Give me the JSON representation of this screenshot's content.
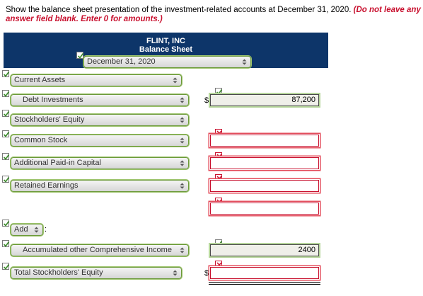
{
  "instruction": {
    "text": "Show the balance sheet presentation of the investment-related accounts at December 31, 2020.",
    "warning": "(Do not leave any answer field blank. Enter 0 for amounts.)"
  },
  "header": {
    "company": "FLINT, INC",
    "title": "Balance Sheet",
    "date_select": "December 31, 2020"
  },
  "rows": [
    {
      "label": "Current Assets",
      "value": "",
      "status": "correct"
    },
    {
      "label": "Debt Investments",
      "value": "87,200",
      "currency": "$",
      "status": "correct"
    },
    {
      "label": "Stockholders' Equity",
      "value": "",
      "status": "correct"
    },
    {
      "label": "Common Stock",
      "value": "",
      "status": "incorrect"
    },
    {
      "label": "Additional Paid-in Capital",
      "value": "",
      "status": "incorrect"
    },
    {
      "label": "Retained Earnings",
      "value": "",
      "status": "incorrect"
    },
    {
      "label": "",
      "value": "",
      "status": "incorrect"
    },
    {
      "label": "Add",
      "suffix": ":",
      "status": "correct"
    },
    {
      "label": "Accumulated other Comprehensive Income",
      "value": "2400",
      "status": "correct"
    },
    {
      "label": "Total Stockholders' Equity",
      "value": "",
      "currency": "$",
      "status": "incorrect"
    }
  ]
}
